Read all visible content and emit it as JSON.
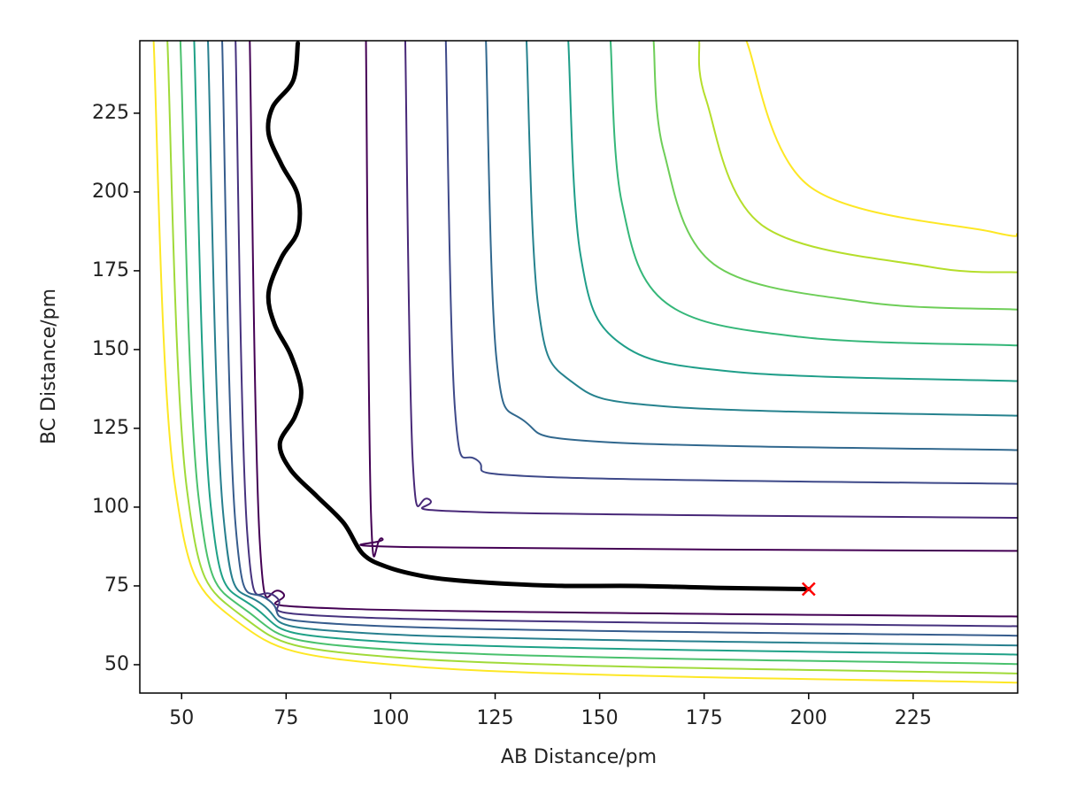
{
  "chart_data": {
    "type": "contour",
    "xlabel": "AB Distance/pm",
    "ylabel": "BC Distance/pm",
    "xlim": [
      40,
      250
    ],
    "ylim": [
      41,
      248
    ],
    "xticks": [
      50,
      75,
      100,
      125,
      150,
      175,
      200,
      225
    ],
    "yticks": [
      50,
      75,
      100,
      125,
      150,
      175,
      200,
      225
    ],
    "contours": [
      {
        "color": "#440154",
        "x": [
          66.3,
          68.7,
          74,
          90,
          250
        ],
        "y": [
          248,
          89,
          73,
          67.7,
          65.3
        ]
      },
      {
        "color": "#46327e",
        "x": [
          62.9,
          65.7,
          72.4,
          92.4,
          250
        ],
        "y": [
          248,
          91.7,
          71.7,
          65,
          62.2
        ]
      },
      {
        "color": "#365c8d",
        "x": [
          59.7,
          62.9,
          70.9,
          94.9,
          250
        ],
        "y": [
          248,
          94.4,
          70.4,
          62.4,
          59.2
        ]
      },
      {
        "color": "#277f8e",
        "x": [
          56.3,
          60,
          69.3,
          97.3,
          250
        ],
        "y": [
          248,
          97.1,
          69.1,
          59.8,
          56.1
        ]
      },
      {
        "color": "#1fa187",
        "x": [
          53,
          57,
          67.7,
          99.7,
          250
        ],
        "y": [
          248,
          99.9,
          67.9,
          57.2,
          53.2
        ]
      },
      {
        "color": "#4ac16d",
        "x": [
          49.7,
          54.1,
          66.1,
          102.1,
          250
        ],
        "y": [
          248,
          102.6,
          66.6,
          54.6,
          50.2
        ]
      },
      {
        "color": "#a0da39",
        "x": [
          46.6,
          51.3,
          64.6,
          104.6,
          250
        ],
        "y": [
          248,
          105.3,
          65.3,
          52,
          47.2
        ]
      },
      {
        "color": "#fde725",
        "x": [
          43.3,
          48.3,
          63,
          107,
          250
        ],
        "y": [
          248,
          108,
          64,
          49.3,
          44.3
        ]
      },
      {
        "color": "#440154",
        "x": [
          94.1,
          95.3,
          98,
          106,
          250
        ],
        "y": [
          248,
          98,
          90,
          87.3,
          86.1
        ]
      },
      {
        "color": "#482878",
        "x": [
          103.5,
          105.3,
          109.3,
          121.3,
          250
        ],
        "y": [
          248,
          114.4,
          102.4,
          98.4,
          96.6
        ]
      },
      {
        "color": "#3e4989",
        "x": [
          113.2,
          115.4,
          120.7,
          136.7,
          250
        ],
        "y": [
          248,
          130.9,
          114.9,
          109.6,
          107.4
        ]
      },
      {
        "color": "#31688e",
        "x": [
          122.8,
          125.3,
          132,
          152,
          250
        ],
        "y": [
          248,
          147.3,
          127.3,
          120.6,
          118.1
        ]
      },
      {
        "color": "#26828e",
        "x": [
          132.5,
          135.3,
          143.3,
          167.3,
          250
        ],
        "y": [
          248,
          163.8,
          139.8,
          131.8,
          129
        ]
      },
      {
        "color": "#1f9e89",
        "x": [
          142.5,
          145.4,
          154.7,
          182.7,
          250
        ],
        "y": [
          248,
          180.2,
          152.2,
          142.9,
          140
        ]
      },
      {
        "color": "#35b779",
        "x": [
          152.6,
          155.3,
          166,
          198,
          250
        ],
        "y": [
          248,
          196.7,
          164.7,
          154,
          151.3
        ]
      },
      {
        "color": "#6ece58",
        "x": [
          162.9,
          165.3,
          177.3,
          213.3,
          250
        ],
        "y": [
          248,
          213.1,
          177.1,
          165.1,
          162.7
        ]
      },
      {
        "color": "#b5de2b",
        "x": [
          173.8,
          175.4,
          188.7,
          228.7,
          250
        ],
        "y": [
          248,
          229.6,
          189.6,
          176.3,
          174.5
        ]
      },
      {
        "color": "#fde725",
        "x": [
          185.1,
          200,
          244,
          250
        ],
        "y": [
          248,
          202,
          187.3,
          186.7
        ]
      }
    ],
    "series": [
      {
        "type": "line",
        "color": "#000000",
        "x": [
          77.8,
          76.7,
          71.8,
          70.8,
          73.9,
          77.8,
          77.8,
          73.9,
          70.8,
          72.2,
          76.1,
          78.6,
          77.1,
          73.5,
          76.1,
          82.4,
          88.8,
          93.4,
          99.4,
          107.8,
          116.3,
          129,
          141.7,
          158.7,
          177.8,
          200
        ],
        "y": [
          247.2,
          235.4,
          227,
          218.5,
          208.7,
          198.9,
          187.6,
          179.2,
          168,
          158.1,
          148.3,
          137.1,
          128.7,
          120.2,
          111.8,
          103.4,
          94.9,
          85.1,
          80.9,
          78.1,
          76.7,
          75.6,
          75,
          75,
          74.4,
          74
        ]
      },
      {
        "type": "scatter",
        "marker": "x",
        "color": "#ff0000",
        "x": [
          200
        ],
        "y": [
          74
        ]
      }
    ]
  }
}
